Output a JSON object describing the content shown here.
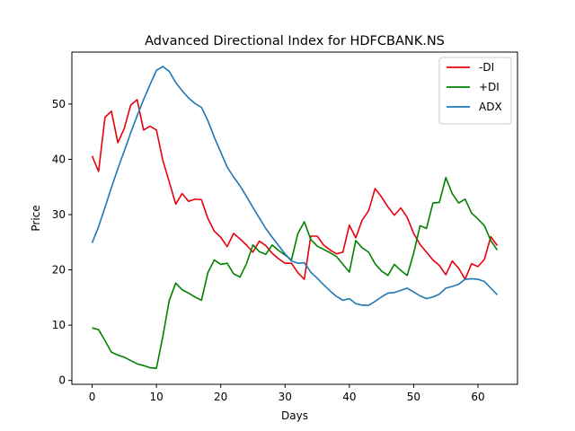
{
  "chart_data": {
    "type": "line",
    "title": "Advanced Directional Index for HDFCBANK.NS",
    "xlabel": "Days",
    "ylabel": "Price",
    "xlim": [
      -3.15,
      66.15
    ],
    "ylim": [
      -0.7,
      59.4
    ],
    "xticks": [
      0,
      10,
      20,
      30,
      40,
      50,
      60
    ],
    "yticks": [
      0,
      10,
      20,
      30,
      40,
      50
    ],
    "grid": false,
    "legend_position": "top-right",
    "x": [
      0,
      1,
      2,
      3,
      4,
      5,
      6,
      7,
      8,
      9,
      10,
      11,
      12,
      13,
      14,
      15,
      16,
      17,
      18,
      19,
      20,
      21,
      22,
      23,
      24,
      25,
      26,
      27,
      28,
      29,
      30,
      31,
      32,
      33,
      34,
      35,
      36,
      37,
      38,
      39,
      40,
      41,
      42,
      43,
      44,
      45,
      46,
      47,
      48,
      49,
      50,
      51,
      52,
      53,
      54,
      55,
      56,
      57,
      58,
      59,
      60,
      61,
      62,
      63
    ],
    "series": [
      {
        "name": "-DI",
        "color": "#e8000b",
        "values": [
          40.6,
          37.8,
          47.6,
          48.7,
          43.0,
          45.6,
          49.8,
          50.8,
          45.3,
          46.0,
          45.3,
          39.8,
          35.9,
          31.9,
          33.8,
          32.4,
          32.8,
          32.7,
          29.3,
          27.0,
          25.9,
          24.2,
          26.6,
          25.6,
          24.5,
          23.2,
          25.2,
          24.4,
          23.0,
          22.0,
          21.2,
          21.2,
          19.5,
          18.3,
          26.1,
          26.1,
          24.5,
          23.6,
          22.9,
          23.2,
          28.1,
          25.8,
          29.0,
          30.7,
          34.7,
          33.2,
          31.4,
          29.9,
          31.2,
          29.5,
          26.6,
          24.6,
          23.2,
          21.8,
          20.8,
          19.1,
          21.6,
          20.3,
          18.3,
          21.1,
          20.6,
          21.9,
          26.0,
          24.4
        ]
      },
      {
        "name": "+DI",
        "color": "#008000",
        "values": [
          9.5,
          9.2,
          7.2,
          5.1,
          4.6,
          4.2,
          3.6,
          3.0,
          2.7,
          2.3,
          2.2,
          8.0,
          14.5,
          17.6,
          16.4,
          15.8,
          15.1,
          14.5,
          19.5,
          21.8,
          21.0,
          21.2,
          19.3,
          18.7,
          21.1,
          24.5,
          23.3,
          22.8,
          24.5,
          23.5,
          22.7,
          21.8,
          26.6,
          28.7,
          25.5,
          24.3,
          23.7,
          23.1,
          22.4,
          21.0,
          19.6,
          25.3,
          24.0,
          23.2,
          21.1,
          19.8,
          19.0,
          21.0,
          19.9,
          19.0,
          23.0,
          28.0,
          27.5,
          32.1,
          32.2,
          36.7,
          33.8,
          32.1,
          32.8,
          30.3,
          29.2,
          28.0,
          25.3,
          23.6
        ]
      },
      {
        "name": "ADX",
        "color": "#1f77b4",
        "values": [
          24.9,
          27.8,
          31.3,
          34.9,
          38.3,
          41.5,
          44.8,
          47.9,
          50.8,
          53.5,
          56.1,
          56.8,
          55.9,
          53.9,
          52.4,
          51.1,
          50.1,
          49.4,
          47.0,
          44.0,
          41.3,
          38.6,
          36.8,
          35.2,
          33.3,
          31.3,
          29.4,
          27.5,
          25.9,
          24.4,
          22.9,
          21.6,
          21.2,
          21.3,
          19.6,
          18.5,
          17.3,
          16.2,
          15.2,
          14.5,
          14.8,
          13.9,
          13.6,
          13.6,
          14.3,
          15.1,
          15.8,
          15.9,
          16.3,
          16.7,
          16.0,
          15.3,
          14.8,
          15.1,
          15.6,
          16.7,
          17.0,
          17.4,
          18.3,
          18.4,
          18.3,
          17.9,
          16.7,
          15.5
        ]
      }
    ]
  }
}
